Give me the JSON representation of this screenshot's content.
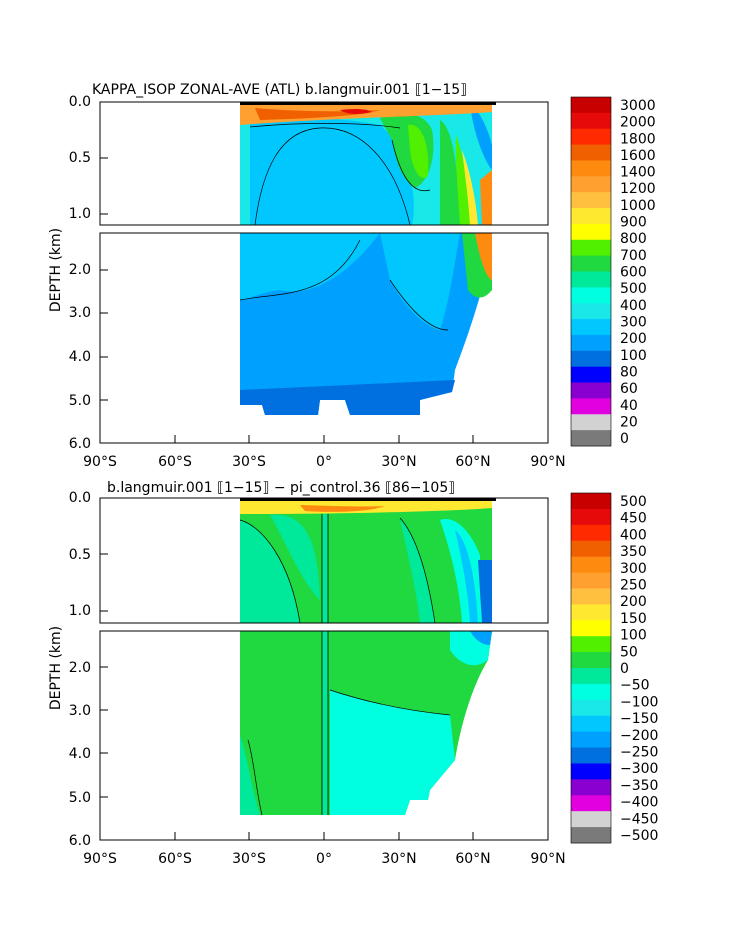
{
  "chart_data": [
    {
      "type": "heatmap",
      "title": "KAPPA_ISOP ZONAL-AVE (ATL) b.langmuir.001 ⟦1−15⟧",
      "ylabel": "DEPTH (km)",
      "xlabel": "",
      "x_ticks": [
        "90°S",
        "60°S",
        "30°S",
        "0°",
        "30°N",
        "60°N",
        "90°N"
      ],
      "x_values": [
        -90,
        -60,
        -30,
        0,
        30,
        60,
        90
      ],
      "upper_y_ticks": [
        "0.0",
        "0.5",
        "1.0"
      ],
      "upper_y_values": [
        0.0,
        0.5,
        1.0
      ],
      "lower_y_ticks": [
        "2.0",
        "3.0",
        "4.0",
        "5.0",
        "6.0"
      ],
      "lower_y_values": [
        2.0,
        3.0,
        4.0,
        5.0,
        6.0
      ],
      "xlim": [
        -90,
        90
      ],
      "ylim_upper": [
        0.0,
        1.15
      ],
      "ylim_lower": [
        1.15,
        6.0
      ],
      "data_extent_lat": [
        -34,
        70
      ],
      "colorbar_labels": [
        "3000",
        "2000",
        "1800",
        "1600",
        "1400",
        "1200",
        "1000",
        "900",
        "800",
        "700",
        "600",
        "500",
        "400",
        "300",
        "200",
        "100",
        "80",
        "60",
        "40",
        "20",
        "0"
      ],
      "colorbar_colors": [
        "#c80000",
        "#e60a0a",
        "#ff2a00",
        "#f06000",
        "#ff8a10",
        "#ffa030",
        "#ffc040",
        "#ffe830",
        "#ffff00",
        "#50f000",
        "#20d840",
        "#00e89a",
        "#00ffe0",
        "#18e8e8",
        "#00c8ff",
        "#00a0ff",
        "#0070e0",
        "#0000ff",
        "#8a00d0",
        "#e000e0",
        "#d2d2d2",
        "#7a7a7a"
      ]
    },
    {
      "type": "heatmap",
      "title": "b.langmuir.001 ⟦1−15⟧ − pi_control.36 ⟦86−105⟧",
      "ylabel": "DEPTH (km)",
      "xlabel": "",
      "x_ticks": [
        "90°S",
        "60°S",
        "30°S",
        "0°",
        "30°N",
        "60°N",
        "90°N"
      ],
      "x_values": [
        -90,
        -60,
        -30,
        0,
        30,
        60,
        90
      ],
      "upper_y_ticks": [
        "0.0",
        "0.5",
        "1.0"
      ],
      "upper_y_values": [
        0.0,
        0.5,
        1.0
      ],
      "lower_y_ticks": [
        "2.0",
        "3.0",
        "4.0",
        "5.0",
        "6.0"
      ],
      "lower_y_values": [
        2.0,
        3.0,
        4.0,
        5.0,
        6.0
      ],
      "xlim": [
        -90,
        90
      ],
      "ylim_upper": [
        0.0,
        1.15
      ],
      "ylim_lower": [
        1.15,
        6.0
      ],
      "data_extent_lat": [
        -34,
        70
      ],
      "colorbar_labels": [
        "500",
        "450",
        "400",
        "350",
        "300",
        "250",
        "200",
        "150",
        "100",
        "50",
        "0",
        "−50",
        "−100",
        "−150",
        "−200",
        "−250",
        "−300",
        "−350",
        "−400",
        "−450",
        "−500"
      ],
      "colorbar_colors": [
        "#c80000",
        "#e60a0a",
        "#ff2a00",
        "#f06000",
        "#ff8a10",
        "#ffa030",
        "#ffc040",
        "#ffe830",
        "#ffff00",
        "#50f000",
        "#20d840",
        "#00e89a",
        "#00ffe0",
        "#18e8e8",
        "#00c8ff",
        "#00a0ff",
        "#0070e0",
        "#0000ff",
        "#8a00d0",
        "#e000e0",
        "#d2d2d2",
        "#7a7a7a"
      ]
    }
  ]
}
